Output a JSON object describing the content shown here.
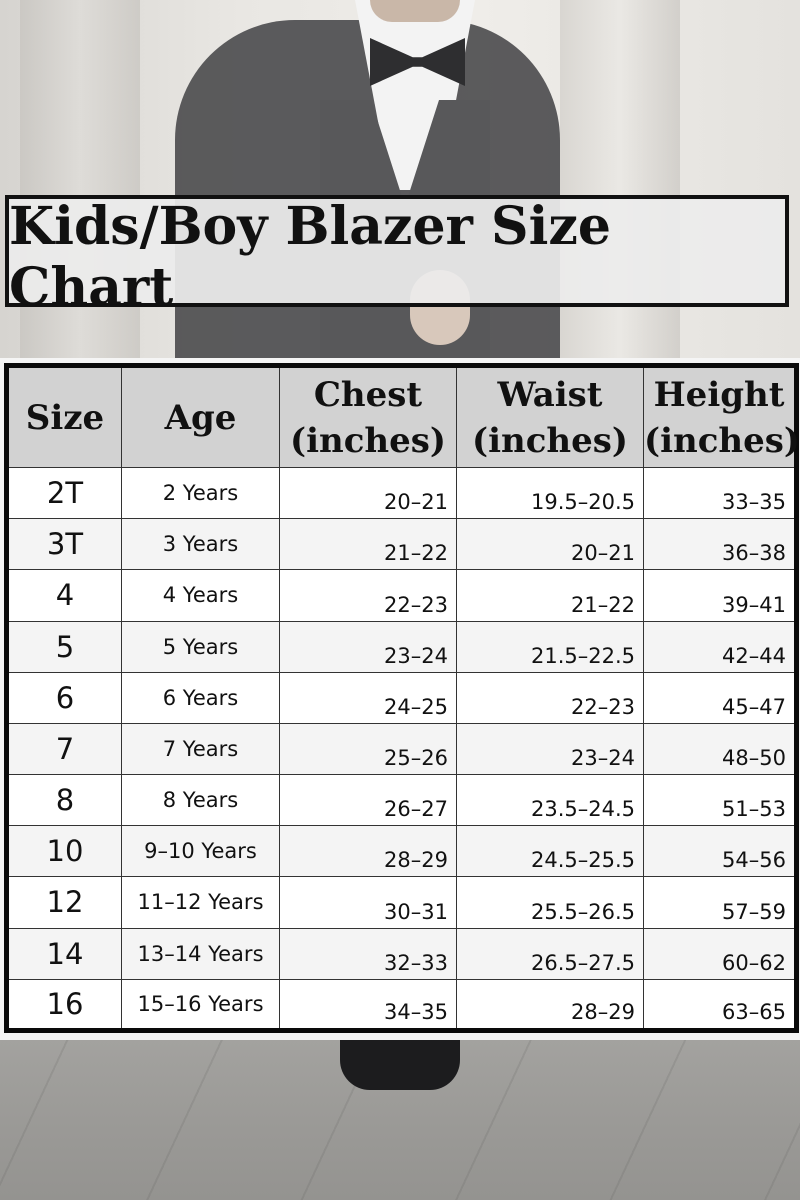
{
  "title": "Kids/Boy Blazer Size Chart",
  "colors": {
    "banner_bg": "#ececec",
    "header_bg": "#d2d2d2",
    "border": "#111111"
  },
  "table": {
    "headers": {
      "size": "Size",
      "age": "Age",
      "chest_line1": "Chest",
      "chest_line2": "(inches)",
      "waist_line1": "Waist",
      "waist_line2": "(inches)",
      "height_line1": "Height",
      "height_line2": "(inches)"
    },
    "rows": [
      {
        "size": "2T",
        "age": "2 Years",
        "chest": "20–21",
        "waist": "19.5–20.5",
        "height": "33–35"
      },
      {
        "size": "3T",
        "age": "3 Years",
        "chest": "21–22",
        "waist": "20–21",
        "height": "36–38"
      },
      {
        "size": "4",
        "age": "4 Years",
        "chest": "22–23",
        "waist": "21–22",
        "height": "39–41"
      },
      {
        "size": "5",
        "age": "5 Years",
        "chest": "23–24",
        "waist": "21.5–22.5",
        "height": "42–44"
      },
      {
        "size": "6",
        "age": "6 Years",
        "chest": "24–25",
        "waist": "22–23",
        "height": "45–47"
      },
      {
        "size": "7",
        "age": "7 Years",
        "chest": "25–26",
        "waist": "23–24",
        "height": "48–50"
      },
      {
        "size": "8",
        "age": "8 Years",
        "chest": "26–27",
        "waist": "23.5–24.5",
        "height": "51–53"
      },
      {
        "size": "10",
        "age": "9–10 Years",
        "chest": "28–29",
        "waist": "24.5–25.5",
        "height": "54–56"
      },
      {
        "size": "12",
        "age": "11–12 Years",
        "chest": "30–31",
        "waist": "25.5–26.5",
        "height": "57–59"
      },
      {
        "size": "14",
        "age": "13–14 Years",
        "chest": "32–33",
        "waist": "26.5–27.5",
        "height": "60–62"
      },
      {
        "size": "16",
        "age": "15–16 Years",
        "chest": "34–35",
        "waist": "28–29",
        "height": "63–65"
      }
    ]
  }
}
